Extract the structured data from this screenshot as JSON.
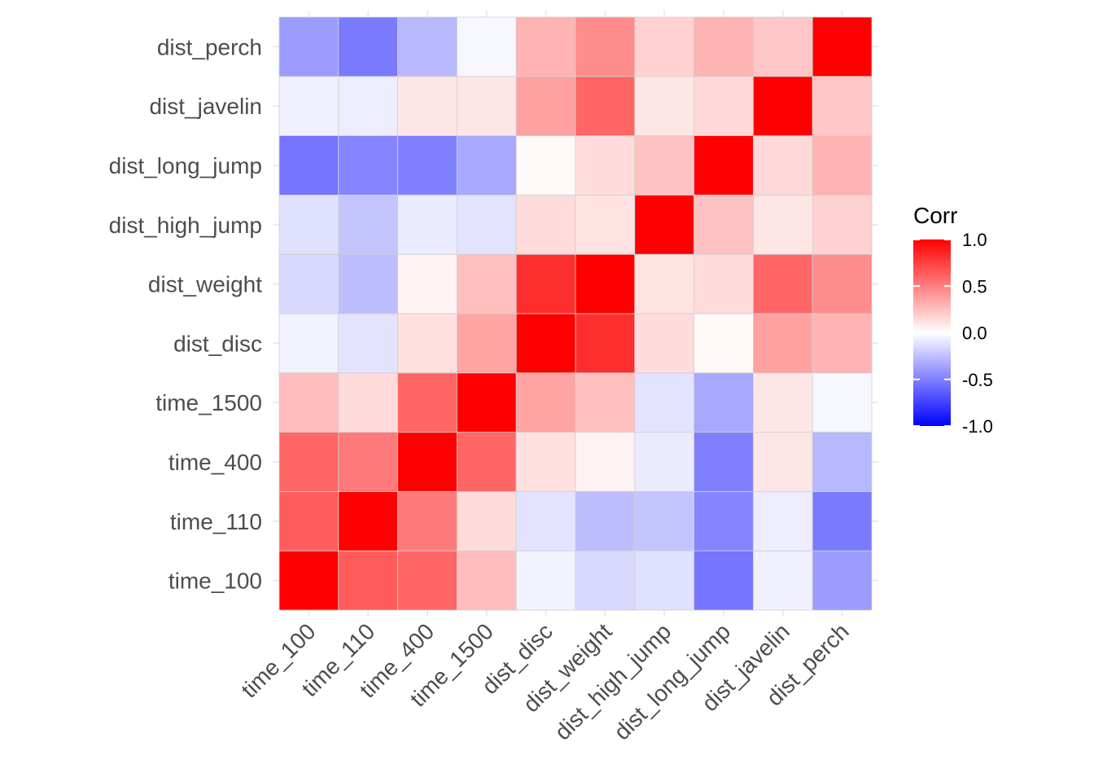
{
  "chart_data": {
    "type": "heatmap",
    "title": "",
    "xlabel": "",
    "ylabel": "",
    "variables": [
      "time_100",
      "time_110",
      "time_400",
      "time_1500",
      "dist_disc",
      "dist_weight",
      "dist_high_jump",
      "dist_long_jump",
      "dist_javelin",
      "dist_perch"
    ],
    "matrix": [
      [
        1.0,
        0.64,
        0.6,
        0.26,
        -0.05,
        -0.15,
        -0.12,
        -0.54,
        -0.06,
        -0.39
      ],
      [
        0.64,
        1.0,
        0.52,
        0.14,
        -0.11,
        -0.26,
        -0.23,
        -0.48,
        -0.07,
        -0.52
      ],
      [
        0.6,
        0.52,
        1.0,
        0.6,
        0.12,
        0.05,
        -0.08,
        -0.5,
        0.1,
        -0.28
      ],
      [
        0.26,
        0.14,
        0.6,
        1.0,
        0.36,
        0.25,
        -0.11,
        -0.34,
        0.1,
        -0.03
      ],
      [
        -0.05,
        -0.11,
        0.12,
        0.36,
        1.0,
        0.82,
        0.14,
        0.02,
        0.37,
        0.3
      ],
      [
        -0.15,
        -0.26,
        0.05,
        0.25,
        0.82,
        1.0,
        0.11,
        0.14,
        0.6,
        0.45
      ],
      [
        -0.12,
        -0.23,
        -0.08,
        -0.11,
        0.14,
        0.11,
        1.0,
        0.24,
        0.1,
        0.18
      ],
      [
        -0.54,
        -0.48,
        -0.5,
        -0.34,
        0.02,
        0.14,
        0.24,
        1.0,
        0.15,
        0.3
      ],
      [
        -0.06,
        -0.07,
        0.1,
        0.1,
        0.37,
        0.6,
        0.1,
        0.15,
        1.0,
        0.22
      ],
      [
        -0.39,
        -0.52,
        -0.28,
        -0.03,
        0.3,
        0.45,
        0.18,
        0.3,
        0.22,
        1.0
      ]
    ],
    "legend": {
      "title": "Corr",
      "position": "right",
      "ticks": [
        "1.0",
        "0.5",
        "0.0",
        "-0.5",
        "-1.0"
      ],
      "tick_values": [
        1.0,
        0.5,
        0.0,
        -0.5,
        -1.0
      ],
      "range": [
        -1,
        1
      ]
    },
    "colors": {
      "low": "#0000ff",
      "mid": "#ffffff",
      "high": "#ff0000",
      "grid": "#ebebeb",
      "tick_text": "#4d4d4d"
    },
    "grid": true
  }
}
